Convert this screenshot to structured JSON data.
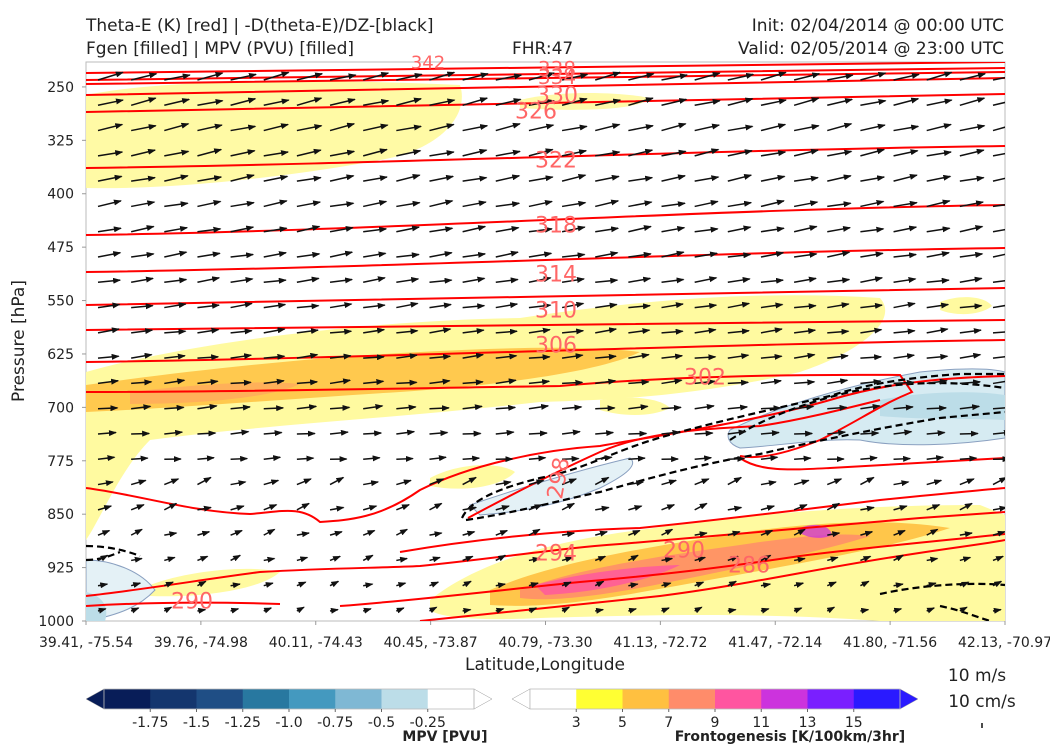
{
  "header": {
    "title_line1": "Theta-E (K) [red] | -D(theta-E)/DZ-[black]",
    "title_line2": "Fgen [filled] | MPV (PVU) [filled]",
    "fhr": "FHR:47",
    "init": "Init: 02/04/2014 @ 00:00 UTC",
    "valid": "Valid: 02/05/2014 @ 23:00 UTC"
  },
  "colors": {
    "theta_e": "#ff0000",
    "dthetae_dz": "#000000",
    "contour_label": "#ff6666"
  },
  "chart_data": {
    "type": "cross-section",
    "xlabel": "Latitude,Longitude",
    "ylabel": "Pressure [hPa]",
    "x_ticks": [
      "39.41, -75.54",
      "39.76, -74.98",
      "40.11, -74.43",
      "40.45, -73.87",
      "40.79, -73.30",
      "41.13, -72.72",
      "41.47, -72.14",
      "41.80, -71.56",
      "42.13, -70.97"
    ],
    "y_ticks": [
      250,
      325,
      400,
      475,
      550,
      625,
      700,
      775,
      850,
      925,
      1000
    ],
    "ylim": [
      1000,
      215
    ],
    "theta_e_contour_labels": [
      342,
      338,
      334,
      330,
      326,
      322,
      318,
      314,
      310,
      306,
      302,
      298,
      294,
      290,
      290,
      286
    ],
    "mpv_colorbar": {
      "label": "MPV [PVU]",
      "ticks": [
        "-1.75",
        "-1.5",
        "-1.25",
        "-1.0",
        "-0.75",
        "-0.5",
        "-0.25"
      ],
      "colors": [
        "#081d58",
        "#14366e",
        "#1f4e85",
        "#2878a0",
        "#4499bf",
        "#7fb8d4",
        "#bcdde8",
        "#ffffff"
      ]
    },
    "fgen_colorbar": {
      "label": "Frontogenesis [K/100km/3hr]",
      "ticks": [
        "3",
        "5",
        "7",
        "9",
        "11",
        "13",
        "15"
      ],
      "colors": [
        "#ffffff",
        "#ffff33",
        "#ffc040",
        "#ff8c6a",
        "#ff55a0",
        "#cc33dd",
        "#7a1fff",
        "#2a1aff"
      ]
    },
    "wind_reference": {
      "horizontal": "10 m/s",
      "vertical": "10 cm/s"
    }
  }
}
